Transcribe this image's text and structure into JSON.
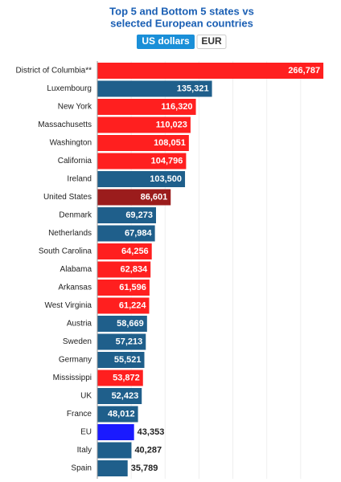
{
  "chart_data": {
    "type": "barh",
    "title_lines": [
      "Top 5 and Bottom 5 states vs",
      "selected European countries"
    ],
    "buttons": [
      "US dollars",
      "EUR"
    ],
    "categories": [
      "District of Columbia**",
      "Luxembourg",
      "New York",
      "Massachusetts",
      "Washington",
      "California",
      "Ireland",
      "United States",
      "Denmark",
      "Netherlands",
      "South Carolina",
      "Alabama",
      "Arkansas",
      "West Virginia",
      "Austria",
      "Sweden",
      "Germany",
      "Mississippi",
      "UK",
      "France",
      "EU",
      "Italy",
      "Spain"
    ],
    "values": [
      266787,
      135321,
      116320,
      110023,
      108051,
      104796,
      103500,
      86601,
      69273,
      67984,
      64256,
      62834,
      61596,
      61224,
      58669,
      57213,
      55521,
      53872,
      52423,
      48012,
      43353,
      40287,
      35789
    ],
    "value_labels": [
      "266,787",
      "135,321",
      "116,320",
      "110,023",
      "108,051",
      "104,796",
      "103,500",
      "86,601",
      "69,273",
      "67,984",
      "64,256",
      "62,834",
      "61,596",
      "61,224",
      "58,669",
      "57,213",
      "55,521",
      "53,872",
      "52,423",
      "48,012",
      "43,353",
      "40,287",
      "35,789"
    ],
    "colors": [
      "#ff1f1f",
      "#1f5f8b",
      "#ff1f1f",
      "#ff1f1f",
      "#ff1f1f",
      "#ff1f1f",
      "#1f5f8b",
      "#9b1c1c",
      "#1f5f8b",
      "#1f5f8b",
      "#ff1f1f",
      "#ff1f1f",
      "#ff1f1f",
      "#ff1f1f",
      "#1f5f8b",
      "#1f5f8b",
      "#1f5f8b",
      "#ff1f1f",
      "#1f5f8b",
      "#1f5f8b",
      "#1a1aff",
      "#1f5f8b",
      "#1f5f8b"
    ],
    "xlim": [
      0,
      280000
    ]
  }
}
